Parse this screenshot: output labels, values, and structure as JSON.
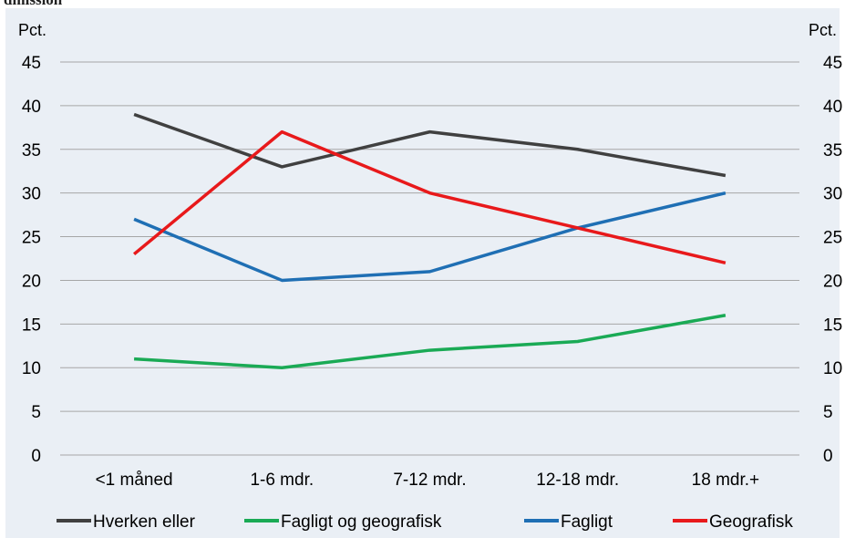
{
  "chart_data": {
    "type": "line",
    "title": "dmission",
    "ylabel_left": "Pct.",
    "ylabel_right": "Pct.",
    "ylim": [
      0,
      45
    ],
    "yticks": [
      0,
      5,
      10,
      15,
      20,
      25,
      30,
      35,
      40,
      45
    ],
    "categories": [
      "<1 måned",
      "1-6 mdr.",
      "7-12 mdr.",
      "12-18 mdr.",
      "18 mdr.+"
    ],
    "grid": true,
    "legend": "bottom",
    "series": [
      {
        "name": "Hverken eller",
        "color": "#404040",
        "values": [
          39,
          33,
          37,
          35,
          32
        ]
      },
      {
        "name": "Fagligt og geografisk",
        "color": "#1aaa55",
        "values": [
          11,
          10,
          12,
          13,
          16
        ]
      },
      {
        "name": "Fagligt",
        "color": "#1f6fb4",
        "values": [
          27,
          20,
          21,
          26,
          30
        ]
      },
      {
        "name": "Geografisk",
        "color": "#e8191b",
        "values": [
          23,
          37,
          30,
          26,
          22
        ]
      }
    ]
  }
}
